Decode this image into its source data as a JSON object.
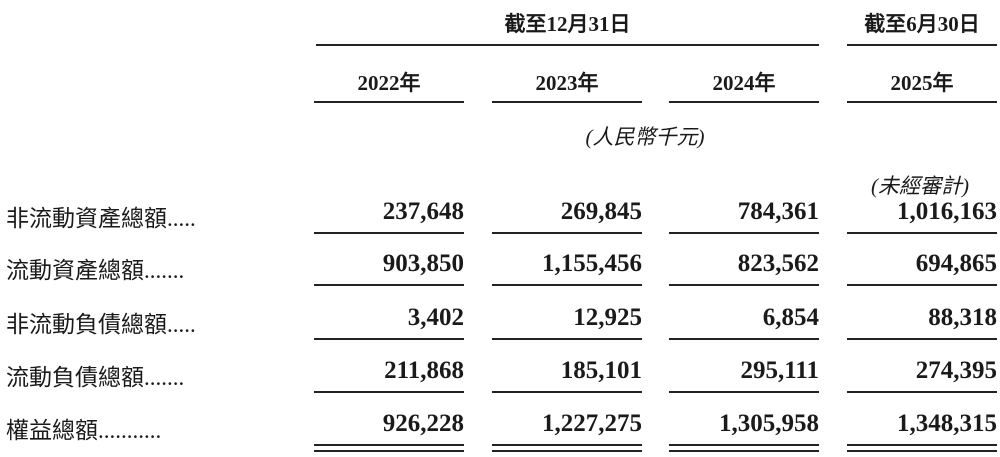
{
  "header": {
    "group1": "截至12月31日",
    "group2": "截至6月30日",
    "years": [
      "2022年",
      "2023年",
      "2024年",
      "2025年"
    ],
    "unit_note": "(人民幣千元)",
    "unaudited_note": "(未經審計)"
  },
  "rows": [
    {
      "label": "非流動資產總額.....",
      "values": [
        "237,648",
        "269,845",
        "784,361",
        "1,016,163"
      ]
    },
    {
      "label": "流動資產總額.......",
      "values": [
        "903,850",
        "1,155,456",
        "823,562",
        "694,865"
      ]
    },
    {
      "label": "非流動負債總額.....",
      "values": [
        "3,402",
        "12,925",
        "6,854",
        "88,318"
      ]
    },
    {
      "label": "流動負債總額.......",
      "values": [
        "211,868",
        "185,101",
        "295,111",
        "274,395"
      ]
    },
    {
      "label": "權益總額...........",
      "values": [
        "926,228",
        "1,227,275",
        "1,305,958",
        "1,348,315"
      ]
    }
  ]
}
